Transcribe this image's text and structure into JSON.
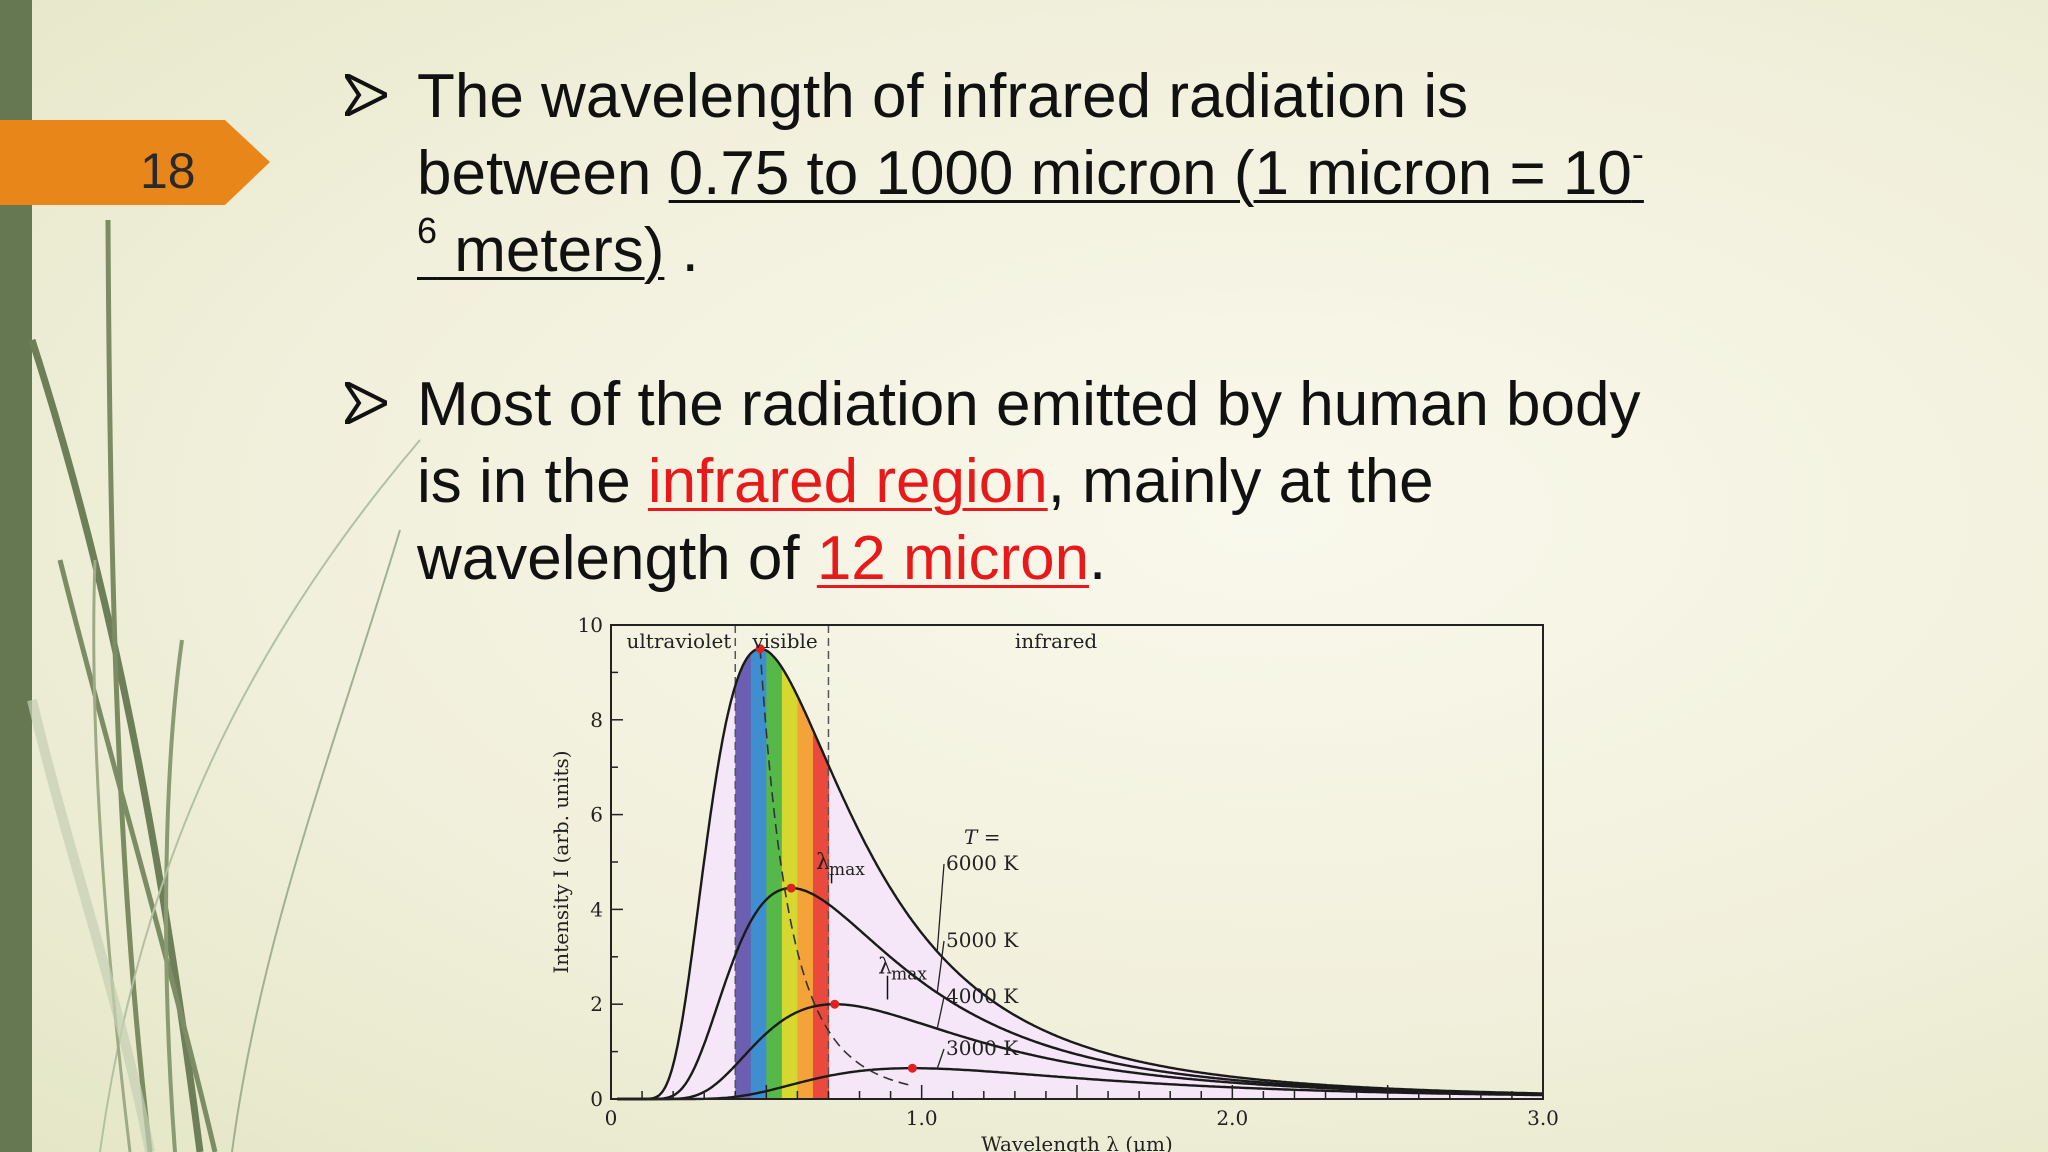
{
  "slide": {
    "number": "18",
    "accent_color": "#e8861a",
    "sidebar_color": "#667851"
  },
  "bullets": [
    {
      "icon": "arrow-bullet-icon",
      "line1": "The wavelength of infrared radiation is",
      "line2_prefix": "between ",
      "line2_underlined": "0.75 to 1000 micron (1 micron = 10",
      "line2_sup": "-",
      "line3_sup": "6",
      "line3_underlined": " meters)",
      "line3_suffix": " ."
    },
    {
      "icon": "arrow-bullet-icon",
      "line1": "Most of the radiation emitted by human body",
      "line2_prefix": "is in the ",
      "line2_highlight": "infrared region",
      "line2_suffix": ", mainly at the",
      "line3_prefix": "wavelength of ",
      "line3_highlight": "12 micron",
      "line3_suffix": "."
    }
  ],
  "chart_data": {
    "type": "line",
    "xlabel": "Wavelength  λ  (μm)",
    "ylabel": "Intensity  I  (arb. units)",
    "xlim": [
      0,
      3.0
    ],
    "ylim": [
      0,
      10
    ],
    "x_ticks": [
      "0",
      "1.0",
      "2.0",
      "3.0"
    ],
    "y_ticks": [
      "0",
      "2",
      "4",
      "6",
      "8",
      "10"
    ],
    "regions": [
      {
        "label": "ultraviolet",
        "x_start": 0,
        "x_end": 0.4
      },
      {
        "label": "visible",
        "x_start": 0.4,
        "x_end": 0.7
      },
      {
        "label": "infrared",
        "x_start": 0.7,
        "x_end": 3.0
      }
    ],
    "temperature_label": "T =",
    "lambda_max_label": "λmax",
    "series": [
      {
        "name": "6000 K",
        "peak_x": 0.48,
        "peak_y": 9.5
      },
      {
        "name": "5000 K",
        "peak_x": 0.58,
        "peak_y": 4.45
      },
      {
        "name": "4000 K",
        "peak_x": 0.72,
        "peak_y": 2.0
      },
      {
        "name": "3000 K",
        "peak_x": 0.97,
        "peak_y": 0.65
      }
    ],
    "visible_band_colors": [
      "#6a5fb0",
      "#3f8fd0",
      "#55b848",
      "#d6d82f",
      "#f3a33a",
      "#ea4a3c"
    ],
    "fill_color": "#f5e6f8"
  }
}
